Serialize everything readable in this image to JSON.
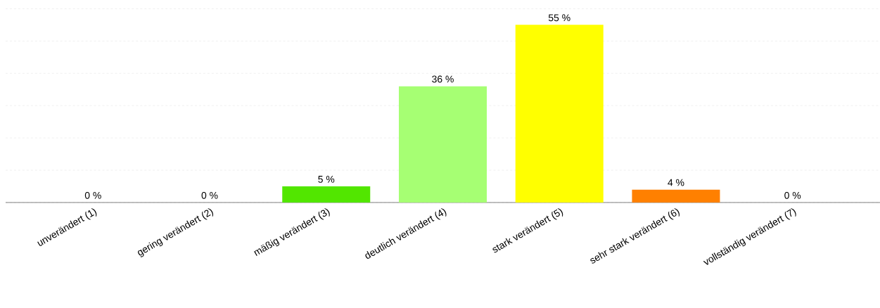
{
  "chart_data": {
    "type": "bar",
    "categories": [
      "unverändert (1)",
      "gering verändert (2)",
      "mäßig verändert (3)",
      "deutlich verändert (4)",
      "stark verändert (5)",
      "sehr stark verändert (6)",
      "vollständig verändert (7)"
    ],
    "values": [
      0,
      0,
      5,
      36,
      55,
      4,
      0
    ],
    "colors": [
      "#999999",
      "#999999",
      "#52e600",
      "#a6ff73",
      "#ffff00",
      "#ff8000",
      "#999999"
    ],
    "value_labels": [
      "0 %",
      "0 %",
      "5 %",
      "36 %",
      "55 %",
      "4 %",
      "0 %"
    ],
    "grid": "y",
    "tick_labels": "x"
  }
}
